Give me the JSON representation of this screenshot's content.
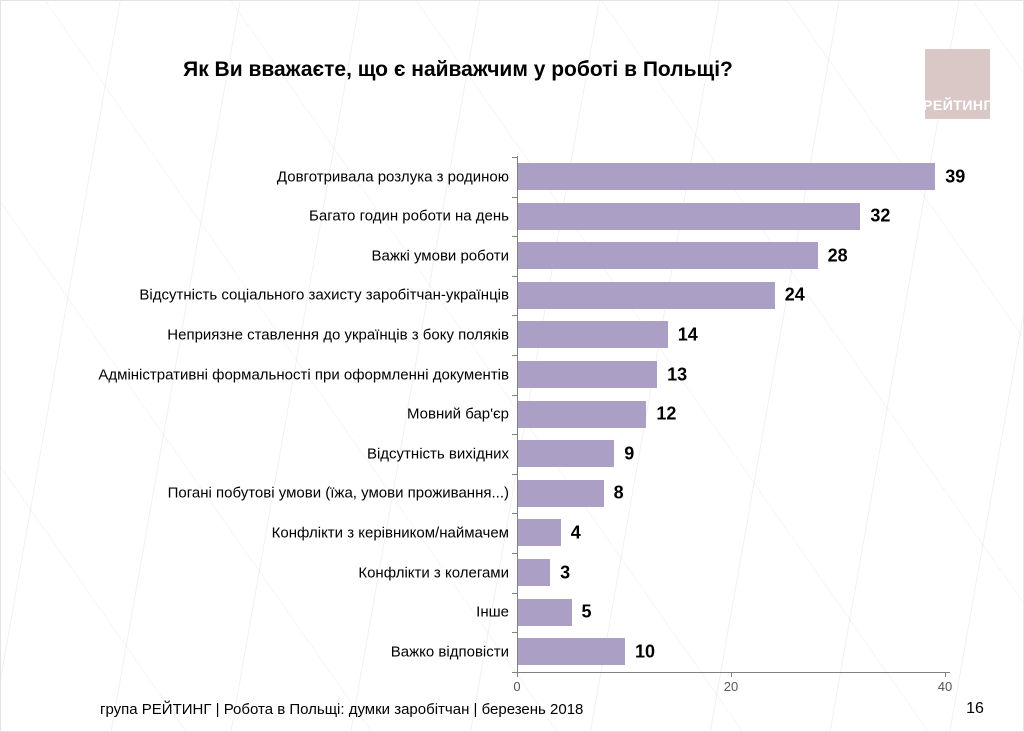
{
  "slide": {
    "title": "Як Ви вважаєте, що є найважчим у роботі в Польщі?",
    "logo_text": "РЕЙТИНГ",
    "logo_color": "#d9c8c6",
    "footer": "група РЕЙТИНГ  | Робота в Польщі: думки заробітчан  |  березень 2018",
    "page_number": "16"
  },
  "chart_data": {
    "type": "bar",
    "orientation": "horizontal",
    "title": "Як Ви вважаєте, що є найважчим у роботі в Польщі?",
    "categories": [
      "Довготривала розлука з родиною",
      "Багато годин роботи на день",
      "Важкі умови роботи",
      "Відсутність соціального захисту заробітчан-українців",
      "Неприязне ставлення до українців з боку поляків",
      "Адміністративні формальності при оформленні документів",
      "Мовний бар'єр",
      "Відсутність вихідних",
      "Погані побутові умови (їжа, умови проживання...)",
      "Конфлікти з керівником/наймачем",
      "Конфлікти з колегами",
      "Інше",
      "Важко відповісти"
    ],
    "values": [
      39,
      32,
      28,
      24,
      14,
      13,
      12,
      9,
      8,
      4,
      3,
      5,
      10
    ],
    "xlabel": "",
    "ylabel": "",
    "xlim": [
      0,
      40
    ],
    "x_ticks": [
      0,
      20,
      40
    ],
    "bar_color": "#ab9fc6",
    "axis_color": "#808080",
    "grid": false,
    "value_labels": true,
    "legend": false
  }
}
